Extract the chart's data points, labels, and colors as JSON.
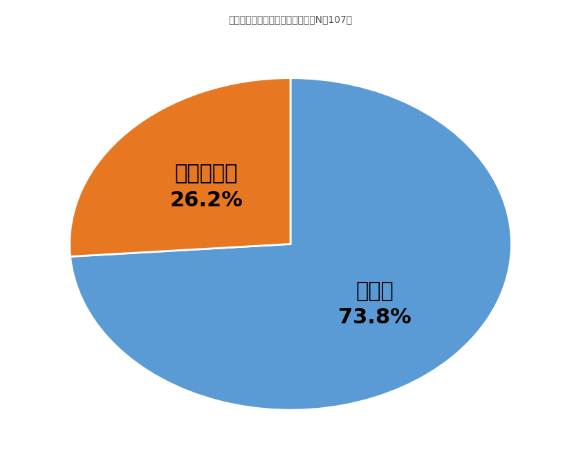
{
  "title": "売却住宅の種類は何ですか？　（N＝107）",
  "title_fontsize": 19,
  "title_color": "#555555",
  "slices": [
    73.8,
    26.2
  ],
  "label1_line1": "戸建て",
  "label1_line2": "73.8%",
  "label2_line1": "マンション",
  "label2_line2": "26.2%",
  "colors": [
    "#5B9BD5",
    "#E87722"
  ],
  "startangle": 90,
  "background_color": "#ffffff",
  "label_fontsize": 22,
  "label_colors": [
    "#000000",
    "#000000"
  ]
}
